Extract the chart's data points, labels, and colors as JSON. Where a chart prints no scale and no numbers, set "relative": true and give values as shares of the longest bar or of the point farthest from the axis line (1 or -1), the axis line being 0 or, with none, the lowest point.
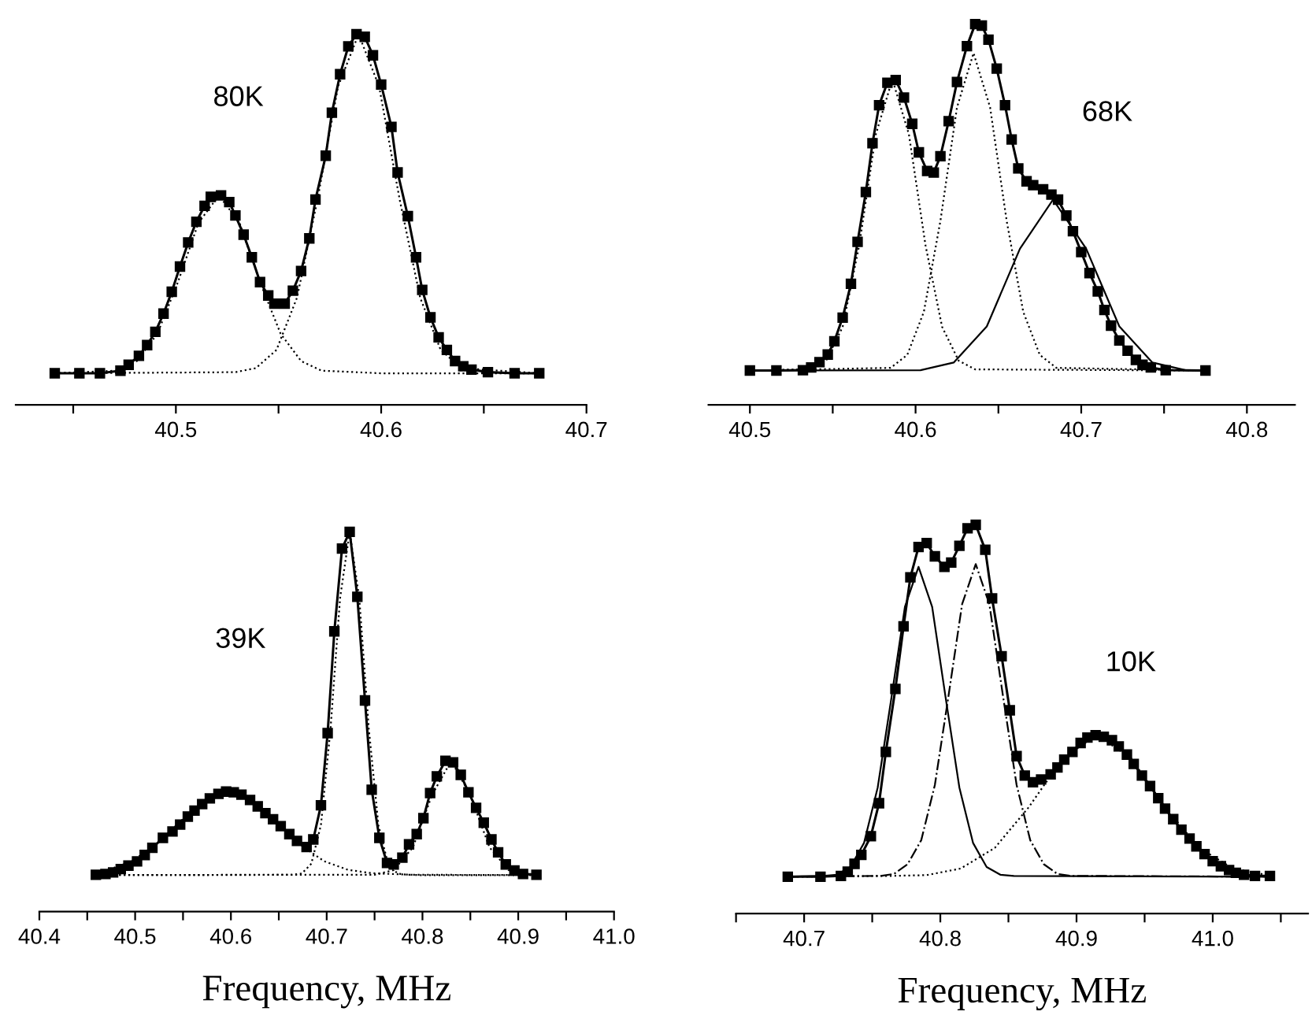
{
  "chart_data": [
    {
      "type": "line",
      "relative": true,
      "annotations": [
        "80K"
      ],
      "xlim": [
        40.422,
        40.7
      ],
      "xticks": [
        {
          "value": 40.45,
          "label": null
        },
        40.5,
        {
          "value": 40.55,
          "label": null
        },
        40.6,
        {
          "value": 40.65,
          "label": null
        },
        40.7
      ],
      "series": [
        {
          "color": "#000000",
          "marker": "square",
          "line_style": "solid",
          "x": [
            40.441,
            40.453,
            40.463,
            40.473,
            40.477,
            40.482,
            40.486,
            40.49,
            40.494,
            40.498,
            40.502,
            40.506,
            40.51,
            40.514,
            40.517,
            40.522,
            40.526,
            40.529,
            40.533,
            40.537,
            40.541,
            40.545,
            40.548,
            40.553,
            40.557,
            40.561,
            40.565,
            40.568,
            40.573,
            40.576,
            40.58,
            40.584,
            40.588,
            40.592,
            40.596,
            40.6,
            40.605,
            40.608,
            40.613,
            40.617,
            40.62,
            40.624,
            40.628,
            40.632,
            40.636,
            40.64,
            40.644,
            40.652,
            40.665,
            40.677
          ],
          "values": [
            0.085,
            0.085,
            0.085,
            0.092,
            0.108,
            0.132,
            0.161,
            0.197,
            0.246,
            0.305,
            0.373,
            0.438,
            0.494,
            0.537,
            0.561,
            0.565,
            0.547,
            0.511,
            0.459,
            0.398,
            0.331,
            0.295,
            0.273,
            0.273,
            0.308,
            0.361,
            0.449,
            0.554,
            0.672,
            0.788,
            0.892,
            0.967,
            1.0,
            0.993,
            0.943,
            0.864,
            0.75,
            0.627,
            0.509,
            0.398,
            0.31,
            0.236,
            0.182,
            0.148,
            0.118,
            0.104,
            0.095,
            0.088,
            0.085,
            0.085
          ]
        },
        {
          "color": "#000000",
          "marker": "none",
          "line_style": "dotted",
          "x": [
            40.441,
            40.471,
            40.481,
            40.491,
            40.501,
            40.511,
            40.521,
            40.531,
            40.541,
            40.551,
            40.561,
            40.571,
            40.6,
            40.677
          ],
          "values": [
            0.085,
            0.092,
            0.118,
            0.192,
            0.331,
            0.491,
            0.565,
            0.491,
            0.331,
            0.192,
            0.118,
            0.092,
            0.085,
            0.085
          ]
        },
        {
          "color": "#000000",
          "marker": "none",
          "line_style": "dotted",
          "x": [
            40.441,
            40.529,
            40.539,
            40.549,
            40.559,
            40.569,
            40.579,
            40.589,
            40.599,
            40.609,
            40.619,
            40.629,
            40.639,
            40.677
          ],
          "values": [
            0.085,
            0.088,
            0.099,
            0.148,
            0.289,
            0.554,
            0.859,
            1.0,
            0.859,
            0.554,
            0.289,
            0.148,
            0.099,
            0.085
          ]
        }
      ]
    },
    {
      "type": "line",
      "relative": true,
      "annotations": [
        "68K"
      ],
      "xlim": [
        40.475,
        40.829
      ],
      "xticks": [
        40.5,
        {
          "value": 40.55,
          "label": null
        },
        40.6,
        {
          "value": 40.65,
          "label": null
        },
        40.7,
        {
          "value": 40.75,
          "label": null
        },
        40.8
      ],
      "series": [
        {
          "color": "#000000",
          "marker": "square",
          "line_style": "solid",
          "x": [
            40.5,
            40.516,
            40.532,
            40.537,
            40.542,
            40.547,
            40.551,
            40.556,
            40.561,
            40.565,
            40.57,
            40.574,
            40.578,
            40.583,
            40.588,
            40.593,
            40.598,
            40.602,
            40.607,
            40.611,
            40.615,
            40.62,
            40.625,
            40.631,
            40.636,
            40.64,
            40.644,
            40.649,
            40.654,
            40.658,
            40.662,
            40.667,
            40.671,
            40.677,
            40.682,
            40.686,
            40.691,
            40.695,
            40.7,
            40.705,
            40.71,
            40.714,
            40.718,
            40.723,
            40.728,
            40.733,
            40.737,
            40.742,
            40.751,
            40.775
          ],
          "values": [
            0.09,
            0.09,
            0.091,
            0.098,
            0.112,
            0.132,
            0.167,
            0.229,
            0.318,
            0.428,
            0.559,
            0.687,
            0.787,
            0.846,
            0.853,
            0.807,
            0.738,
            0.663,
            0.614,
            0.61,
            0.653,
            0.745,
            0.848,
            0.942,
            1.0,
            0.996,
            0.959,
            0.883,
            0.787,
            0.697,
            0.621,
            0.587,
            0.577,
            0.566,
            0.552,
            0.539,
            0.497,
            0.456,
            0.401,
            0.346,
            0.298,
            0.249,
            0.208,
            0.169,
            0.142,
            0.118,
            0.105,
            0.098,
            0.091,
            0.09
          ]
        },
        {
          "color": "#000000",
          "marker": "none",
          "line_style": "dotted",
          "x": [
            40.5,
            40.536,
            40.546,
            40.556,
            40.566,
            40.576,
            40.586,
            40.596,
            40.606,
            40.616,
            40.626,
            40.636,
            40.775
          ],
          "values": [
            0.09,
            0.093,
            0.116,
            0.205,
            0.419,
            0.71,
            0.855,
            0.71,
            0.419,
            0.205,
            0.116,
            0.093,
            0.09
          ]
        },
        {
          "color": "#000000",
          "marker": "none",
          "line_style": "dotted",
          "x": [
            40.5,
            40.585,
            40.595,
            40.605,
            40.615,
            40.625,
            40.635,
            40.645,
            40.655,
            40.665,
            40.675,
            40.685,
            40.775
          ],
          "values": [
            0.09,
            0.097,
            0.131,
            0.244,
            0.483,
            0.781,
            0.924,
            0.781,
            0.483,
            0.244,
            0.131,
            0.097,
            0.09
          ]
        },
        {
          "color": "#000000",
          "marker": "none",
          "line_style": "solid",
          "x": [
            40.5,
            40.603,
            40.623,
            40.643,
            40.663,
            40.683,
            40.703,
            40.723,
            40.743,
            40.763,
            40.775
          ],
          "values": [
            0.09,
            0.091,
            0.111,
            0.206,
            0.41,
            0.539,
            0.41,
            0.206,
            0.111,
            0.091,
            0.09
          ]
        }
      ]
    },
    {
      "type": "line",
      "relative": true,
      "annotations": [
        "39K"
      ],
      "xlabel": "Frequency, MHz",
      "xlim": [
        40.4,
        41.0
      ],
      "xticks": [
        40.4,
        {
          "value": 40.45,
          "label": null
        },
        40.5,
        {
          "value": 40.55,
          "label": null
        },
        40.6,
        {
          "value": 40.65,
          "label": null
        },
        40.7,
        {
          "value": 40.75,
          "label": null
        },
        40.8,
        {
          "value": 40.85,
          "label": null
        },
        40.9,
        {
          "value": 40.95,
          "label": null
        },
        {
          "value": 41.0,
          "label": "41.0"
        }
      ],
      "series": [
        {
          "color": "#000000",
          "marker": "square",
          "line_style": "solid",
          "x": [
            40.459,
            40.469,
            40.477,
            40.485,
            40.493,
            40.502,
            40.51,
            40.518,
            40.529,
            40.539,
            40.547,
            40.555,
            40.562,
            40.57,
            40.578,
            40.587,
            40.595,
            40.603,
            40.611,
            40.62,
            40.628,
            40.636,
            40.644,
            40.652,
            40.661,
            40.669,
            40.679,
            40.686,
            40.694,
            40.701,
            40.708,
            40.716,
            40.724,
            40.732,
            40.74,
            40.747,
            40.755,
            40.763,
            40.77,
            40.779,
            40.786,
            40.794,
            40.801,
            40.808,
            40.815,
            40.824,
            40.832,
            40.84,
            40.848,
            40.856,
            40.864,
            40.872,
            40.879,
            40.887,
            40.896,
            40.905,
            40.919
          ],
          "values": [
            0.097,
            0.099,
            0.103,
            0.112,
            0.121,
            0.132,
            0.149,
            0.168,
            0.194,
            0.211,
            0.229,
            0.25,
            0.266,
            0.283,
            0.298,
            0.31,
            0.316,
            0.314,
            0.308,
            0.294,
            0.277,
            0.259,
            0.243,
            0.225,
            0.204,
            0.186,
            0.17,
            0.19,
            0.28,
            0.47,
            0.738,
            0.956,
            1.0,
            0.829,
            0.556,
            0.321,
            0.194,
            0.128,
            0.124,
            0.142,
            0.177,
            0.204,
            0.246,
            0.312,
            0.356,
            0.397,
            0.393,
            0.36,
            0.314,
            0.273,
            0.234,
            0.19,
            0.156,
            0.124,
            0.108,
            0.099,
            0.097
          ]
        },
        {
          "color": "#000000",
          "marker": "none",
          "line_style": "dotted",
          "x": [
            40.459,
            40.472,
            40.497,
            40.522,
            40.547,
            40.572,
            40.597,
            40.622,
            40.647,
            40.672,
            40.697,
            40.722,
            40.747,
            40.797,
            40.919
          ],
          "values": [
            0.103,
            0.11,
            0.133,
            0.177,
            0.237,
            0.293,
            0.316,
            0.293,
            0.237,
            0.177,
            0.133,
            0.11,
            0.101,
            0.096,
            0.096
          ]
        },
        {
          "color": "#000000",
          "marker": "none",
          "line_style": "dotted",
          "x": [
            40.459,
            40.664,
            40.674,
            40.684,
            40.694,
            40.704,
            40.714,
            40.724,
            40.734,
            40.744,
            40.754,
            40.764,
            40.774,
            40.784,
            40.919
          ],
          "values": [
            0.096,
            0.097,
            0.1,
            0.126,
            0.228,
            0.481,
            0.826,
            1.0,
            0.826,
            0.481,
            0.228,
            0.126,
            0.1,
            0.097,
            0.096
          ]
        },
        {
          "color": "#000000",
          "marker": "none",
          "line_style": "dotted",
          "x": [
            40.459,
            40.75,
            40.77,
            40.79,
            40.81,
            40.83,
            40.85,
            40.87,
            40.89,
            40.91,
            40.919
          ],
          "values": [
            0.096,
            0.097,
            0.109,
            0.169,
            0.307,
            0.397,
            0.307,
            0.169,
            0.109,
            0.097,
            0.096
          ]
        }
      ]
    },
    {
      "type": "line",
      "relative": true,
      "annotations": [
        "10K"
      ],
      "xlabel": "Frequency, MHz",
      "xlim": [
        40.65,
        41.07
      ],
      "xticks": [
        {
          "value": 40.65,
          "label": null
        },
        40.7,
        {
          "value": 40.75,
          "label": null
        },
        40.8,
        {
          "value": 40.85,
          "label": null
        },
        40.9,
        {
          "value": 40.95,
          "label": null
        },
        {
          "value": 41.0,
          "label": "41.0"
        },
        {
          "value": 41.05,
          "label": null
        }
      ],
      "series": [
        {
          "color": "#000000",
          "marker": "square",
          "line_style": "solid",
          "x": [
            40.688,
            40.712,
            40.727,
            40.732,
            40.737,
            40.742,
            40.749,
            40.755,
            40.76,
            40.767,
            40.773,
            40.778,
            40.784,
            40.79,
            40.796,
            40.803,
            40.808,
            40.814,
            40.82,
            40.826,
            40.833,
            40.838,
            40.845,
            40.851,
            40.856,
            40.862,
            40.868,
            40.874,
            40.881,
            40.886,
            40.891,
            40.897,
            40.903,
            40.908,
            40.914,
            40.92,
            40.926,
            40.931,
            40.937,
            40.942,
            40.948,
            40.954,
            40.96,
            40.965,
            40.971,
            40.977,
            40.983,
            40.988,
            40.994,
            41.0,
            41.006,
            41.012,
            41.017,
            41.023,
            41.031,
            41.042
          ],
          "values": [
            0.095,
            0.095,
            0.097,
            0.108,
            0.128,
            0.151,
            0.199,
            0.284,
            0.416,
            0.578,
            0.739,
            0.865,
            0.943,
            0.953,
            0.919,
            0.892,
            0.903,
            0.946,
            0.991,
            1.0,
            0.936,
            0.811,
            0.662,
            0.523,
            0.405,
            0.355,
            0.338,
            0.345,
            0.358,
            0.376,
            0.396,
            0.416,
            0.439,
            0.453,
            0.459,
            0.455,
            0.446,
            0.43,
            0.409,
            0.385,
            0.355,
            0.328,
            0.297,
            0.27,
            0.243,
            0.216,
            0.193,
            0.173,
            0.153,
            0.135,
            0.122,
            0.112,
            0.105,
            0.1,
            0.097,
            0.097
          ]
        },
        {
          "color": "#000000",
          "marker": "none",
          "line_style": "solid",
          "x": [
            40.688,
            40.714,
            40.724,
            40.734,
            40.744,
            40.754,
            40.764,
            40.774,
            40.784,
            40.794,
            40.804,
            40.814,
            40.824,
            40.834,
            40.844,
            40.854,
            41.042
          ],
          "values": [
            0.095,
            0.097,
            0.1,
            0.12,
            0.182,
            0.324,
            0.553,
            0.789,
            0.892,
            0.789,
            0.553,
            0.324,
            0.182,
            0.12,
            0.1,
            0.097,
            0.095
          ]
        },
        {
          "color": "#000000",
          "marker": "none",
          "line_style": "dashdot",
          "x": [
            40.688,
            40.756,
            40.766,
            40.776,
            40.786,
            40.796,
            40.806,
            40.816,
            40.826,
            40.836,
            40.846,
            40.856,
            40.866,
            40.876,
            40.886,
            40.896,
            41.042
          ],
          "values": [
            0.095,
            0.097,
            0.102,
            0.127,
            0.189,
            0.331,
            0.56,
            0.796,
            0.899,
            0.796,
            0.56,
            0.331,
            0.189,
            0.127,
            0.102,
            0.097,
            0.095
          ]
        },
        {
          "color": "#000000",
          "marker": "none",
          "line_style": "dotted",
          "x": [
            40.688,
            40.765,
            40.79,
            40.815,
            40.84,
            40.865,
            40.89,
            40.915,
            40.94,
            40.965,
            40.99,
            41.015,
            41.042
          ],
          "values": [
            0.095,
            0.097,
            0.099,
            0.116,
            0.169,
            0.274,
            0.4,
            0.459,
            0.4,
            0.274,
            0.169,
            0.116,
            0.098
          ]
        }
      ]
    }
  ]
}
